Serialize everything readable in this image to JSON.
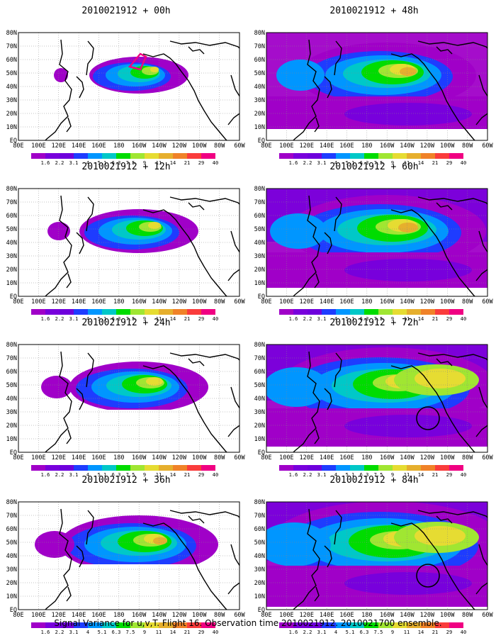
{
  "panels": [
    {
      "title": "2010021912 + 00h",
      "level": 0,
      "circle": false
    },
    {
      "title": "2010021912 + 12h",
      "level": 1,
      "circle": false
    },
    {
      "title": "2010021912 + 24h",
      "level": 2,
      "circle": false
    },
    {
      "title": "2010021912 + 36h",
      "level": 3,
      "circle": false
    },
    {
      "title": "2010021912 + 48h",
      "level": 4,
      "circle": false
    },
    {
      "title": "2010021912 + 60h",
      "level": 5,
      "circle": false
    },
    {
      "title": "2010021912 + 72h",
      "level": 6,
      "circle": true
    },
    {
      "title": "2010021912 + 84h",
      "level": 7,
      "circle": true
    }
  ],
  "lon_labels": [
    "80E",
    "100E",
    "120E",
    "140E",
    "160E",
    "180",
    "160W",
    "140W",
    "120W",
    "100W",
    "80W",
    "60W"
  ],
  "lat_labels": [
    "80N",
    "70N",
    "60N",
    "50N",
    "40N",
    "30N",
    "20N",
    "10N",
    "EQ"
  ],
  "colorbar": {
    "labels": [
      "1.6",
      "2.2",
      "3.1",
      "4",
      "5.1",
      "6.3",
      "7.5",
      "9",
      "11",
      "14",
      "21",
      "29",
      "40"
    ],
    "colors": [
      "#a000c8",
      "#7800dc",
      "#6e00dc",
      "#1e3cff",
      "#0096ff",
      "#00c8c8",
      "#00dc00",
      "#a0e632",
      "#e6dc32",
      "#e6af2d",
      "#f08228",
      "#fa3c3c",
      "#f00082"
    ]
  },
  "caption": "Signal Variance for u,v,T. Flight 16. Observation time 2010021912. 2010021700 ensemble."
}
